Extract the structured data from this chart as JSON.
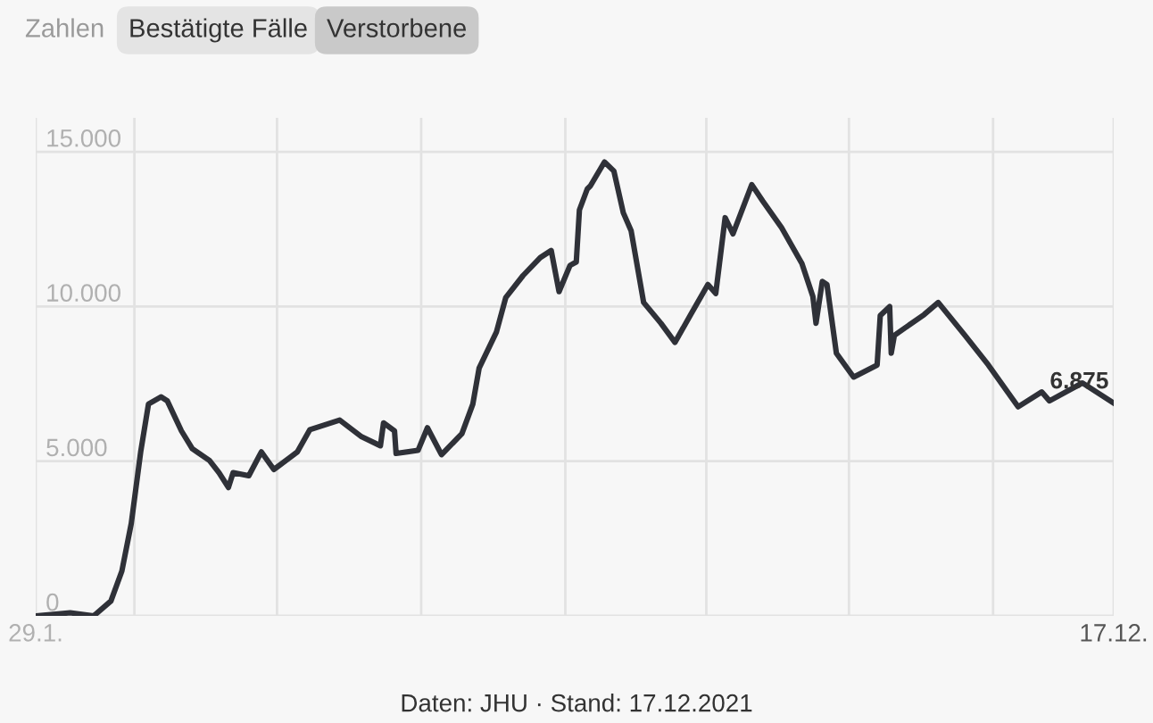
{
  "chart_data": {
    "type": "line",
    "x": [
      "2020-01-29",
      "2020-02-20",
      "2020-03-06",
      "2020-03-17",
      "2020-03-24",
      "2020-03-30",
      "2020-04-05",
      "2020-04-10",
      "2020-04-18",
      "2020-04-22",
      "2020-05-01",
      "2020-05-08",
      "2020-05-19",
      "2020-05-25",
      "2020-05-31",
      "2020-06-03",
      "2020-06-13",
      "2020-06-21",
      "2020-06-29",
      "2020-07-14",
      "2020-07-22",
      "2020-08-10",
      "2020-08-24",
      "2020-09-05",
      "2020-09-07",
      "2020-09-14",
      "2020-09-15",
      "2020-09-29",
      "2020-10-05",
      "2020-10-14",
      "2020-10-27",
      "2020-11-03",
      "2020-11-07",
      "2020-11-18",
      "2020-11-24",
      "2020-12-05",
      "2020-12-16",
      "2020-12-23",
      "2020-12-28",
      "2021-01-04",
      "2021-01-08",
      "2021-01-10",
      "2021-01-15",
      "2021-01-17",
      "2021-01-26",
      "2021-02-01",
      "2021-02-07",
      "2021-02-12",
      "2021-02-20",
      "2021-03-03",
      "2021-03-12",
      "2021-03-22",
      "2021-04-02",
      "2021-04-07",
      "2021-04-13",
      "2021-04-18",
      "2021-04-30",
      "2021-05-07",
      "2021-05-19",
      "2021-06-01",
      "2021-06-08",
      "2021-06-10",
      "2021-06-14",
      "2021-06-17",
      "2021-06-23",
      "2021-07-04",
      "2021-07-19",
      "2021-07-21",
      "2021-07-27",
      "2021-07-28",
      "2021-07-30",
      "2021-08-18",
      "2021-08-27",
      "2021-09-13",
      "2021-09-28",
      "2021-10-17",
      "2021-11-01",
      "2021-11-06",
      "2021-11-27",
      "2021-12-17"
    ],
    "series": [
      {
        "color": "#2f3138",
        "values": [
          0,
          100,
          0,
          480,
          1450,
          2990,
          5300,
          6850,
          7080,
          6950,
          5980,
          5400,
          5020,
          4630,
          4150,
          4630,
          4530,
          5300,
          4730,
          5300,
          6020,
          6330,
          5790,
          5500,
          6240,
          5980,
          5250,
          5350,
          6080,
          5210,
          5890,
          6850,
          8010,
          9170,
          10290,
          11000,
          11580,
          11810,
          10480,
          11330,
          11440,
          13120,
          13800,
          13900,
          14670,
          14380,
          13030,
          12450,
          10130,
          9460,
          8840,
          9740,
          10710,
          10420,
          12870,
          12350,
          13940,
          13410,
          12550,
          11390,
          10320,
          9460,
          10810,
          10710,
          8490,
          7720,
          8110,
          9710,
          10000,
          8490,
          9070,
          9740,
          10130,
          9070,
          8110,
          6760,
          7240,
          6950,
          7530,
          6875
        ]
      }
    ],
    "xlim": [
      "2020-01-29",
      "2021-12-17"
    ],
    "xticks": [
      {
        "value": "2020-01-29",
        "label": "29.1."
      },
      {
        "value": "2020-04-01",
        "label": null
      },
      {
        "value": "2020-07-01",
        "label": null
      },
      {
        "value": "2020-10-01",
        "label": null
      },
      {
        "value": "2021-01-01",
        "label": null
      },
      {
        "value": "2021-04-01",
        "label": null
      },
      {
        "value": "2021-07-01",
        "label": null
      },
      {
        "value": "2021-10-01",
        "label": null
      },
      {
        "value": "2021-12-17",
        "label": "17.12."
      }
    ],
    "ylim": [
      0,
      16100
    ],
    "yticks": [
      {
        "value": 0,
        "label": "0"
      },
      {
        "value": 5000,
        "label": "5.000"
      },
      {
        "value": 10000,
        "label": "10.000"
      },
      {
        "value": 15000,
        "label": "15.000"
      }
    ],
    "grid": true,
    "line_style": "solid",
    "annotations": [
      "Zahlen",
      "Bestätigte Fälle",
      "Verstorbene",
      "Daten: JHU · Stand: 17.12.2021",
      {
        "text": "6.875",
        "x": "2021-12-17",
        "y": 6875
      }
    ]
  }
}
